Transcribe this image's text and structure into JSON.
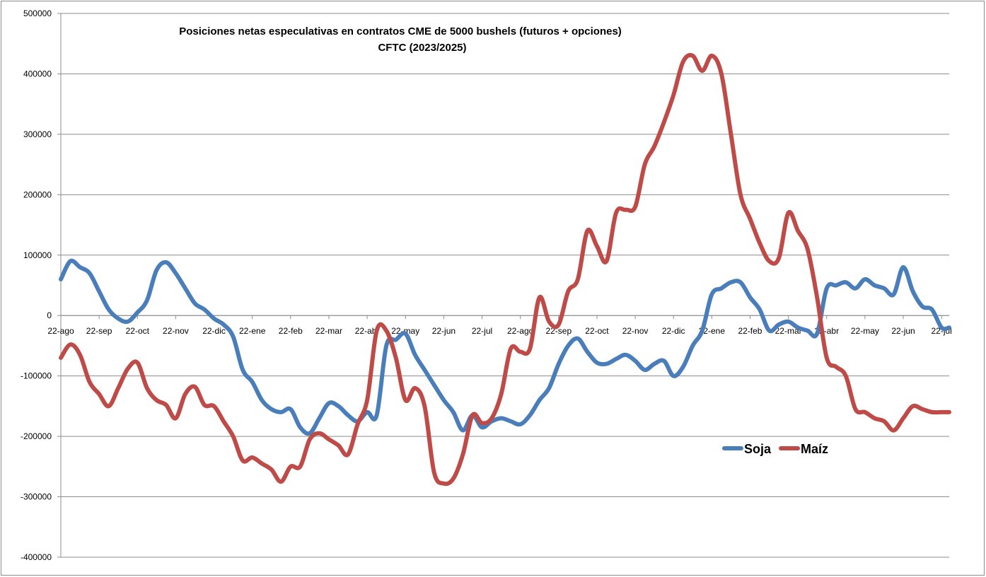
{
  "chart_data": {
    "type": "line",
    "title": "Posiciones netas especulativas en contratos CME de 5000 bushels (futuros + opciones)",
    "subtitle": "CFTC (2023/2025)",
    "xlabel": "",
    "ylabel": "",
    "ylim": [
      -400000,
      500000
    ],
    "yticks": [
      500000,
      400000,
      300000,
      200000,
      100000,
      0,
      -100000,
      -200000,
      -300000,
      -400000
    ],
    "ytick_labels": [
      "500000",
      "400000",
      "300000",
      "200000",
      "100000",
      "0",
      "-100000",
      "-200000",
      "-300000",
      "-400000"
    ],
    "x_tick_labels": [
      "22-ago",
      "22-sep",
      "22-oct",
      "22-nov",
      "22-dic",
      "22-ene",
      "22-feb",
      "22-mar",
      "22-abr",
      "22-may",
      "22-jun",
      "22-jul",
      "22-ago",
      "22-sep",
      "22-oct",
      "22-nov",
      "22-dic",
      "22-ene",
      "22-feb",
      "22-mar",
      "22-abr",
      "22-may",
      "22-jun",
      "22-jul"
    ],
    "x_range_months": [
      0,
      23.2
    ],
    "grid": "horizontal",
    "legend_position": "lower-right",
    "series": [
      {
        "name": "Soja",
        "color": "#4a7ebb",
        "x": [
          0,
          0.25,
          0.5,
          0.75,
          1.0,
          1.25,
          1.5,
          1.75,
          2.0,
          2.25,
          2.5,
          2.75,
          3.0,
          3.25,
          3.5,
          3.75,
          4.0,
          4.25,
          4.5,
          4.75,
          5.0,
          5.25,
          5.5,
          5.75,
          6.0,
          6.25,
          6.5,
          6.75,
          7.0,
          7.25,
          7.5,
          7.75,
          8.0,
          8.25,
          8.5,
          8.75,
          9.0,
          9.25,
          9.5,
          9.75,
          10.0,
          10.25,
          10.5,
          10.75,
          11.0,
          11.25,
          11.5,
          11.75,
          12.0,
          12.25,
          12.5,
          12.75,
          13.0,
          13.25,
          13.5,
          13.75,
          14.0,
          14.25,
          14.5,
          14.75,
          15.0,
          15.25,
          15.5,
          15.75,
          16.0,
          16.25,
          16.5,
          16.75,
          17.0,
          17.25,
          17.5,
          17.75,
          18.0,
          18.25,
          18.5,
          18.75,
          19.0,
          19.25,
          19.5,
          19.75,
          20.0,
          20.25,
          20.5,
          20.75,
          21.0,
          21.25,
          21.5,
          21.75,
          22.0,
          22.25,
          22.5,
          22.75,
          23.0,
          23.2
        ],
        "values": [
          60000,
          90000,
          80000,
          70000,
          40000,
          10000,
          -5000,
          -10000,
          5000,
          25000,
          75000,
          88000,
          70000,
          45000,
          20000,
          10000,
          -5000,
          -15000,
          -35000,
          -90000,
          -110000,
          -140000,
          -155000,
          -160000,
          -155000,
          -185000,
          -195000,
          -170000,
          -145000,
          -150000,
          -165000,
          -175000,
          -160000,
          -165000,
          -50000,
          -40000,
          -30000,
          -65000,
          -90000,
          -115000,
          -140000,
          -160000,
          -190000,
          -165000,
          -185000,
          -175000,
          -170000,
          -175000,
          -180000,
          -165000,
          -140000,
          -120000,
          -80000,
          -50000,
          -38000,
          -60000,
          -78000,
          -80000,
          -72000,
          -65000,
          -75000,
          -90000,
          -80000,
          -75000,
          -100000,
          -85000,
          -50000,
          -25000,
          35000,
          45000,
          55000,
          55000,
          30000,
          10000,
          -25000,
          -15000,
          -10000,
          -20000,
          -25000,
          -30000,
          45000,
          50000,
          55000,
          45000,
          60000,
          50000,
          45000,
          35000,
          80000,
          40000,
          15000,
          10000,
          -20000,
          -20000
        ]
      },
      {
        "name": "Maíz",
        "color": "#be4b48",
        "x": [
          0,
          0.25,
          0.5,
          0.75,
          1.0,
          1.25,
          1.5,
          1.75,
          2.0,
          2.25,
          2.5,
          2.75,
          3.0,
          3.25,
          3.5,
          3.75,
          4.0,
          4.25,
          4.5,
          4.75,
          5.0,
          5.25,
          5.5,
          5.75,
          6.0,
          6.25,
          6.5,
          6.75,
          7.0,
          7.25,
          7.5,
          7.75,
          8.0,
          8.25,
          8.5,
          8.75,
          9.0,
          9.25,
          9.5,
          9.75,
          10.0,
          10.25,
          10.5,
          10.75,
          11.0,
          11.25,
          11.5,
          11.75,
          12.0,
          12.25,
          12.5,
          12.75,
          13.0,
          13.25,
          13.5,
          13.75,
          14.0,
          14.25,
          14.5,
          14.75,
          15.0,
          15.25,
          15.5,
          15.75,
          16.0,
          16.25,
          16.5,
          16.75,
          17.0,
          17.25,
          17.5,
          17.75,
          18.0,
          18.25,
          18.5,
          18.75,
          19.0,
          19.25,
          19.5,
          19.75,
          20.0,
          20.25,
          20.5,
          20.75,
          21.0,
          21.25,
          21.5,
          21.75,
          22.0,
          22.25,
          22.5,
          22.75,
          23.0,
          23.2
        ],
        "values": [
          -70000,
          -48000,
          -65000,
          -110000,
          -130000,
          -150000,
          -120000,
          -88000,
          -78000,
          -120000,
          -140000,
          -148000,
          -170000,
          -130000,
          -118000,
          -148000,
          -150000,
          -175000,
          -200000,
          -240000,
          -235000,
          -245000,
          -255000,
          -275000,
          -250000,
          -250000,
          -205000,
          -195000,
          -205000,
          -215000,
          -230000,
          -180000,
          -140000,
          -25000,
          -25000,
          -70000,
          -140000,
          -120000,
          -150000,
          -260000,
          -278000,
          -270000,
          -230000,
          -165000,
          -178000,
          -170000,
          -130000,
          -55000,
          -60000,
          -55000,
          30000,
          -10000,
          -15000,
          40000,
          60000,
          140000,
          115000,
          90000,
          170000,
          175000,
          180000,
          250000,
          280000,
          320000,
          365000,
          420000,
          430000,
          405000,
          430000,
          400000,
          300000,
          200000,
          160000,
          120000,
          90000,
          95000,
          170000,
          140000,
          110000,
          30000,
          -70000,
          -85000,
          -100000,
          -155000,
          -160000,
          -170000,
          -175000,
          -190000,
          -170000,
          -150000,
          -155000,
          -160000,
          -160000,
          -160000
        ]
      }
    ]
  }
}
